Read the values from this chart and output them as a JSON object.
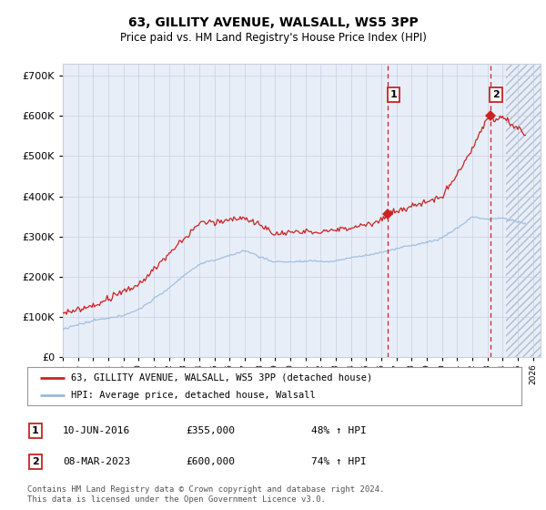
{
  "title": "63, GILLITY AVENUE, WALSALL, WS5 3PP",
  "subtitle": "Price paid vs. HM Land Registry's House Price Index (HPI)",
  "ylim": [
    0,
    730000
  ],
  "xlim_start": 1995.0,
  "xlim_end": 2026.5,
  "hpi_color": "#99bbdd",
  "price_color": "#cc2222",
  "sale1_date_num": 2016.44,
  "sale1_price": 355000,
  "sale2_date_num": 2023.18,
  "sale2_price": 600000,
  "legend_label1": "63, GILLITY AVENUE, WALSALL, WS5 3PP (detached house)",
  "legend_label2": "HPI: Average price, detached house, Walsall",
  "annotation1_label": "10-JUN-2016",
  "annotation1_price": "£355,000",
  "annotation1_hpi": "48% ↑ HPI",
  "annotation2_label": "08-MAR-2023",
  "annotation2_price": "£600,000",
  "annotation2_hpi": "74% ↑ HPI",
  "footnote": "Contains HM Land Registry data © Crown copyright and database right 2024.\nThis data is licensed under the Open Government Licence v3.0.",
  "bg_color": "#ffffff",
  "plot_bg_color": "#e8eef8",
  "grid_color": "#c8d0e0",
  "hatch_start": 2024.25
}
